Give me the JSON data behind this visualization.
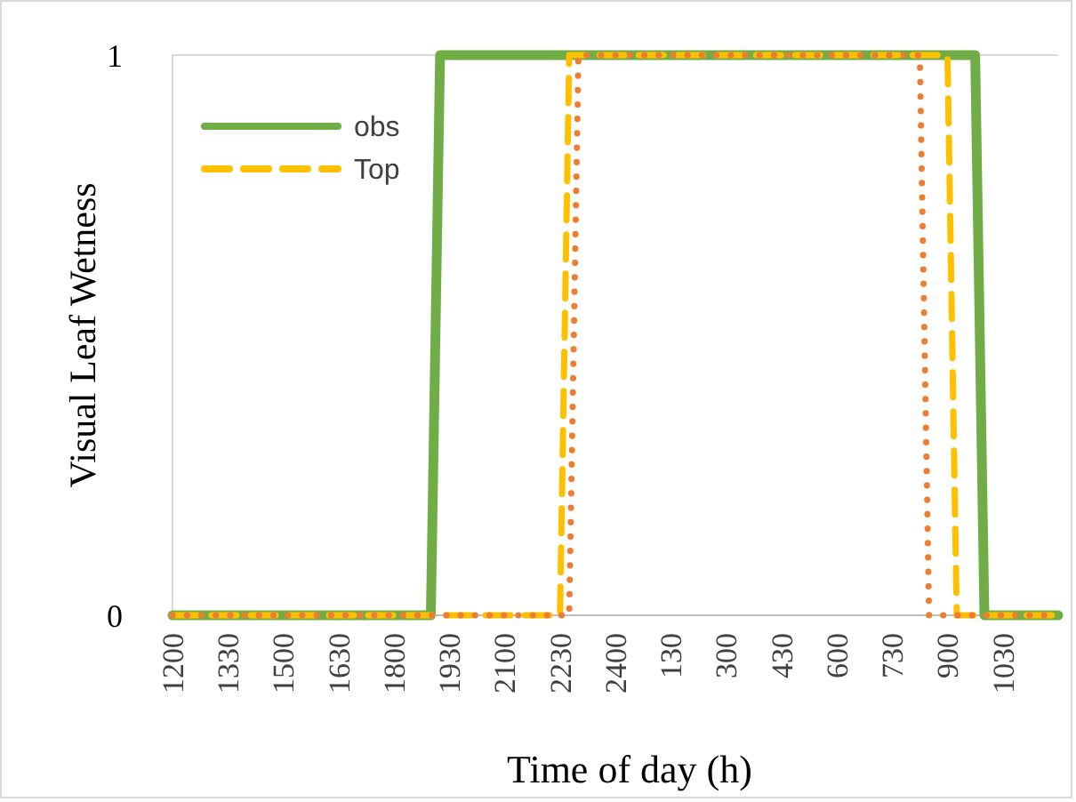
{
  "chart_data": {
    "type": "line",
    "xlabel": "Time of day (h)",
    "ylabel": "Visual Leaf Wetness",
    "categories": [
      "1200",
      null,
      null,
      null,
      null,
      null,
      "1330",
      null,
      null,
      null,
      null,
      null,
      "1500",
      null,
      null,
      null,
      null,
      null,
      "1630",
      null,
      null,
      null,
      null,
      null,
      "1800",
      null,
      null,
      null,
      null,
      null,
      "1930",
      null,
      null,
      null,
      null,
      null,
      "2100",
      null,
      null,
      null,
      null,
      null,
      "2230",
      null,
      null,
      null,
      null,
      null,
      "2400",
      null,
      null,
      null,
      null,
      null,
      "130",
      null,
      null,
      null,
      null,
      null,
      "300",
      null,
      null,
      null,
      null,
      null,
      "430",
      null,
      null,
      null,
      null,
      null,
      "600",
      null,
      null,
      null,
      null,
      null,
      "730",
      null,
      null,
      null,
      null,
      null,
      "900",
      null,
      null,
      null,
      null,
      null,
      "1030",
      null,
      null,
      null,
      null,
      null,
      null
    ],
    "ylim": [
      0,
      1
    ],
    "yticks": [
      0,
      1
    ],
    "grid": false,
    "legend": "top left",
    "marker": "none",
    "series": [
      {
        "name": "obs",
        "color": "#70ad47",
        "line_style": "solid",
        "values": [
          0,
          0,
          0,
          0,
          0,
          0,
          0,
          0,
          0,
          0,
          0,
          0,
          0,
          0,
          0,
          0,
          0,
          0,
          0,
          0,
          0,
          0,
          0,
          0,
          0,
          0,
          0,
          0,
          0,
          1,
          1,
          1,
          1,
          1,
          1,
          1,
          1,
          1,
          1,
          1,
          1,
          1,
          1,
          1,
          1,
          1,
          1,
          1,
          1,
          1,
          1,
          1,
          1,
          1,
          1,
          1,
          1,
          1,
          1,
          1,
          1,
          1,
          1,
          1,
          1,
          1,
          1,
          1,
          1,
          1,
          1,
          1,
          1,
          1,
          1,
          1,
          1,
          1,
          1,
          1,
          1,
          1,
          1,
          1,
          1,
          1,
          1,
          1,
          0,
          0,
          0,
          0,
          0,
          0,
          0,
          0,
          0
        ]
      },
      {
        "name": "Top",
        "color": "#ffc000",
        "line_style": "dashed",
        "values": [
          0,
          0,
          0,
          0,
          0,
          0,
          0,
          0,
          0,
          0,
          0,
          0,
          0,
          0,
          0,
          0,
          0,
          0,
          0,
          0,
          0,
          0,
          0,
          0,
          0,
          0,
          0,
          0,
          0,
          0,
          0,
          0,
          0,
          0,
          0,
          0,
          0,
          0,
          0,
          0,
          0,
          0,
          0,
          1,
          1,
          1,
          1,
          1,
          1,
          1,
          1,
          1,
          1,
          1,
          1,
          1,
          1,
          1,
          1,
          1,
          1,
          1,
          1,
          1,
          1,
          1,
          1,
          1,
          1,
          1,
          1,
          1,
          1,
          1,
          1,
          1,
          1,
          1,
          1,
          1,
          1,
          1,
          1,
          1,
          1,
          0,
          0,
          0,
          0,
          0,
          0,
          0,
          0,
          0,
          0,
          0,
          0
        ]
      },
      {
        "color": "#ed7d31",
        "line_style": "dotted",
        "values": [
          0,
          0,
          0,
          0,
          0,
          0,
          0,
          0,
          0,
          0,
          0,
          0,
          0,
          0,
          0,
          0,
          0,
          0,
          0,
          0,
          0,
          0,
          0,
          0,
          0,
          0,
          0,
          0,
          0,
          0,
          0,
          0,
          0,
          0,
          0,
          0,
          0,
          0,
          0,
          0,
          0,
          0,
          0,
          0,
          1,
          1,
          1,
          1,
          1,
          1,
          1,
          1,
          1,
          1,
          1,
          1,
          1,
          1,
          1,
          1,
          1,
          1,
          1,
          1,
          1,
          1,
          1,
          1,
          1,
          1,
          1,
          1,
          1,
          1,
          1,
          1,
          1,
          1,
          1,
          1,
          1,
          1,
          0,
          0,
          0,
          0,
          0,
          0,
          0,
          0,
          0,
          0,
          0,
          0,
          0,
          0,
          0
        ]
      }
    ]
  }
}
